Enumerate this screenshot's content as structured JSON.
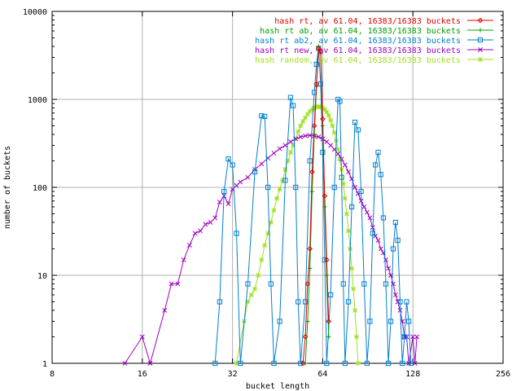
{
  "chart_data": {
    "type": "line",
    "title": "",
    "xlabel": "bucket length",
    "ylabel": "number of buckets",
    "x_scale": "log2",
    "y_scale": "log10",
    "xlim": [
      8,
      256
    ],
    "ylim": [
      1,
      10000
    ],
    "x_ticks": [
      "8",
      "16",
      "32",
      "64",
      "128",
      "256"
    ],
    "x_tick_values": [
      8,
      16,
      32,
      64,
      128,
      256
    ],
    "y_ticks": [
      "1",
      "10",
      "100",
      "1000",
      "10000"
    ],
    "y_tick_values": [
      1,
      10,
      100,
      1000,
      10000
    ],
    "grid": true,
    "legend_position": "top-right",
    "series": [
      {
        "name": "hash rt, av 61.04, 16383/16383 buckets",
        "color": "#e00000",
        "marker": "diamond",
        "points": [
          [
            55,
            1
          ],
          [
            56,
            2
          ],
          [
            57,
            8
          ],
          [
            58,
            20
          ],
          [
            59,
            150
          ],
          [
            60,
            500
          ],
          [
            61,
            1500
          ],
          [
            62,
            3800
          ],
          [
            63,
            3500
          ],
          [
            64,
            600
          ],
          [
            65,
            80
          ],
          [
            66,
            15
          ],
          [
            67,
            3
          ]
        ]
      },
      {
        "name": "hash rt ab, av 61.04, 16383/16383 buckets",
        "color": "#00a000",
        "marker": "plus",
        "points": [
          [
            56,
            1
          ],
          [
            57,
            3
          ],
          [
            58,
            12
          ],
          [
            59,
            90
          ],
          [
            60,
            400
          ],
          [
            61,
            1400
          ],
          [
            62,
            4000
          ],
          [
            63,
            3300
          ],
          [
            64,
            500
          ],
          [
            65,
            60
          ],
          [
            66,
            10
          ],
          [
            67,
            2
          ]
        ]
      },
      {
        "name": "hash rt ab2, av 61.04, 16383/16383 buckets",
        "color": "#0080d0",
        "marker": "square",
        "points": [
          [
            28,
            1
          ],
          [
            29,
            5
          ],
          [
            30,
            90
          ],
          [
            31,
            210
          ],
          [
            32,
            180
          ],
          [
            33,
            30
          ],
          [
            34,
            1
          ],
          [
            36,
            8
          ],
          [
            38,
            150
          ],
          [
            40,
            650
          ],
          [
            41,
            640
          ],
          [
            42,
            100
          ],
          [
            43,
            8
          ],
          [
            44,
            1
          ],
          [
            46,
            3
          ],
          [
            48,
            120
          ],
          [
            50,
            1050
          ],
          [
            51,
            850
          ],
          [
            52,
            100
          ],
          [
            53,
            5
          ],
          [
            54,
            1
          ],
          [
            56,
            5
          ],
          [
            58,
            200
          ],
          [
            60,
            1200
          ],
          [
            61,
            2500
          ],
          [
            62,
            3800
          ],
          [
            63,
            1500
          ],
          [
            64,
            250
          ],
          [
            65,
            15
          ],
          [
            66,
            1
          ],
          [
            68,
            6
          ],
          [
            70,
            100
          ],
          [
            72,
            1000
          ],
          [
            73,
            950
          ],
          [
            74,
            130
          ],
          [
            75,
            8
          ],
          [
            76,
            1
          ],
          [
            78,
            5
          ],
          [
            80,
            60
          ],
          [
            82,
            550
          ],
          [
            84,
            450
          ],
          [
            86,
            90
          ],
          [
            88,
            8
          ],
          [
            90,
            1
          ],
          [
            92,
            3
          ],
          [
            94,
            30
          ],
          [
            96,
            180
          ],
          [
            98,
            250
          ],
          [
            100,
            140
          ],
          [
            102,
            45
          ],
          [
            104,
            8
          ],
          [
            106,
            1
          ],
          [
            108,
            3
          ],
          [
            110,
            20
          ],
          [
            112,
            40
          ],
          [
            114,
            25
          ],
          [
            116,
            5
          ],
          [
            118,
            1
          ],
          [
            120,
            2
          ],
          [
            122,
            5
          ],
          [
            124,
            3
          ],
          [
            126,
            1
          ]
        ]
      },
      {
        "name": "hash rt new, av 61.04, 16383/16383 buckets",
        "color": "#a000c0",
        "marker": "cross",
        "points": [
          [
            14,
            1
          ],
          [
            16,
            2
          ],
          [
            17,
            1
          ],
          [
            19,
            4
          ],
          [
            20,
            8
          ],
          [
            21,
            8
          ],
          [
            22,
            15
          ],
          [
            23,
            22
          ],
          [
            24,
            30
          ],
          [
            25,
            32
          ],
          [
            26,
            38
          ],
          [
            27,
            40
          ],
          [
            28,
            45
          ],
          [
            29,
            68
          ],
          [
            30,
            80
          ],
          [
            31,
            65
          ],
          [
            32,
            95
          ],
          [
            33,
            105
          ],
          [
            34,
            115
          ],
          [
            36,
            130
          ],
          [
            38,
            160
          ],
          [
            40,
            185
          ],
          [
            42,
            215
          ],
          [
            44,
            245
          ],
          [
            46,
            275
          ],
          [
            48,
            300
          ],
          [
            50,
            330
          ],
          [
            52,
            355
          ],
          [
            54,
            375
          ],
          [
            56,
            385
          ],
          [
            58,
            390
          ],
          [
            60,
            385
          ],
          [
            62,
            375
          ],
          [
            64,
            355
          ],
          [
            66,
            330
          ],
          [
            68,
            300
          ],
          [
            70,
            270
          ],
          [
            72,
            240
          ],
          [
            74,
            210
          ],
          [
            76,
            180
          ],
          [
            78,
            150
          ],
          [
            80,
            125
          ],
          [
            82,
            100
          ],
          [
            84,
            85
          ],
          [
            86,
            70
          ],
          [
            88,
            60
          ],
          [
            90,
            52
          ],
          [
            92,
            45
          ],
          [
            94,
            35
          ],
          [
            96,
            28
          ],
          [
            98,
            25
          ],
          [
            100,
            20
          ],
          [
            102,
            18
          ],
          [
            104,
            15
          ],
          [
            106,
            12
          ],
          [
            108,
            10
          ],
          [
            110,
            8
          ],
          [
            112,
            6
          ],
          [
            114,
            5
          ],
          [
            116,
            4
          ],
          [
            118,
            3
          ],
          [
            120,
            2
          ],
          [
            122,
            2
          ],
          [
            124,
            1
          ],
          [
            128,
            2
          ],
          [
            130,
            1
          ],
          [
            132,
            2
          ]
        ]
      },
      {
        "name": "hash random, av 61.04, 16383/16383 buckets",
        "color": "#a0e020",
        "marker": "star",
        "points": [
          [
            33,
            1
          ],
          [
            35,
            3
          ],
          [
            36,
            5
          ],
          [
            37,
            6
          ],
          [
            38,
            7
          ],
          [
            39,
            10
          ],
          [
            40,
            15
          ],
          [
            41,
            22
          ],
          [
            42,
            30
          ],
          [
            43,
            40
          ],
          [
            44,
            55
          ],
          [
            45,
            75
          ],
          [
            46,
            95
          ],
          [
            47,
            120
          ],
          [
            48,
            160
          ],
          [
            49,
            200
          ],
          [
            50,
            250
          ],
          [
            51,
            300
          ],
          [
            52,
            360
          ],
          [
            53,
            430
          ],
          [
            54,
            500
          ],
          [
            55,
            560
          ],
          [
            56,
            620
          ],
          [
            57,
            680
          ],
          [
            58,
            730
          ],
          [
            59,
            770
          ],
          [
            60,
            800
          ],
          [
            61,
            820
          ],
          [
            62,
            830
          ],
          [
            63,
            820
          ],
          [
            64,
            800
          ],
          [
            65,
            770
          ],
          [
            66,
            720
          ],
          [
            67,
            660
          ],
          [
            68,
            580
          ],
          [
            69,
            500
          ],
          [
            70,
            420
          ],
          [
            71,
            340
          ],
          [
            72,
            270
          ],
          [
            73,
            210
          ],
          [
            74,
            160
          ],
          [
            75,
            110
          ],
          [
            76,
            75
          ],
          [
            77,
            50
          ],
          [
            78,
            32
          ],
          [
            79,
            20
          ],
          [
            80,
            12
          ],
          [
            81,
            7
          ],
          [
            82,
            4
          ],
          [
            83,
            2
          ],
          [
            84,
            1
          ]
        ]
      }
    ]
  }
}
